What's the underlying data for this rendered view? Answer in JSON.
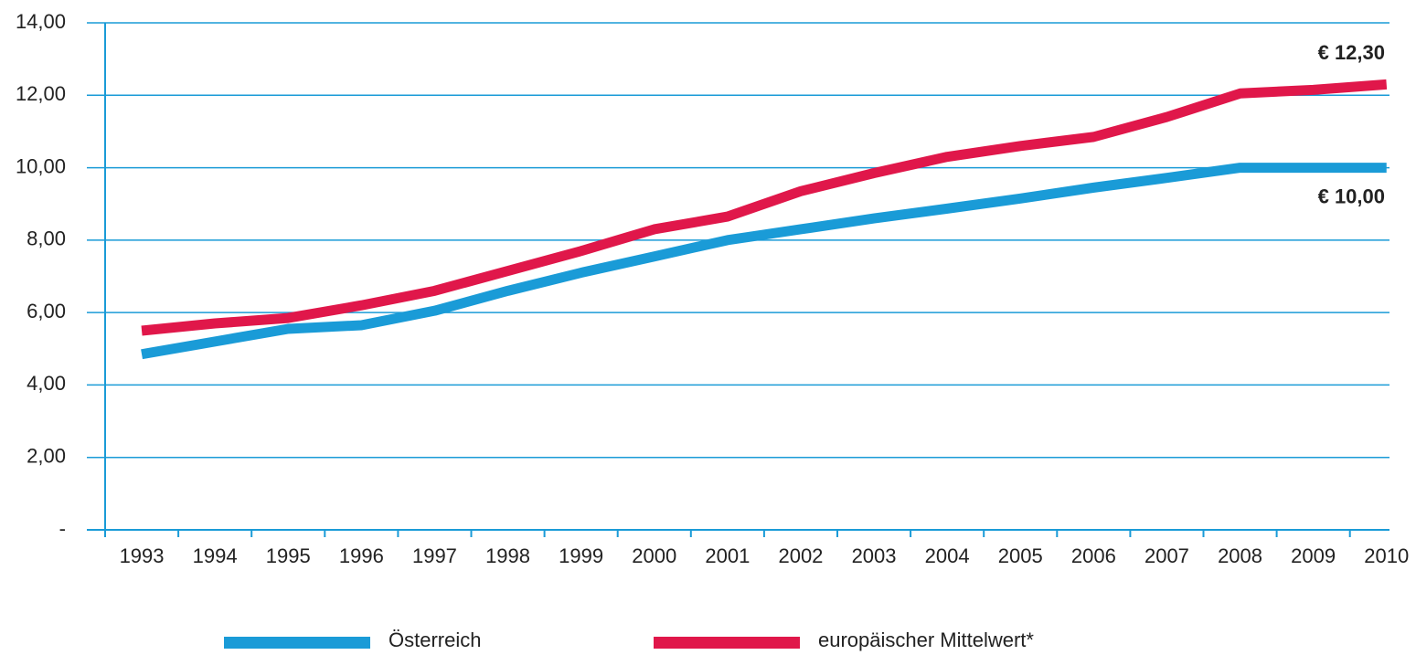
{
  "chart_data": {
    "type": "line",
    "categories": [
      "1993",
      "1994",
      "1995",
      "1996",
      "1997",
      "1998",
      "1999",
      "2000",
      "2001",
      "2002",
      "2003",
      "2004",
      "2005",
      "2006",
      "2007",
      "2008",
      "2009",
      "2010"
    ],
    "series": [
      {
        "name": "Österreich",
        "color": "#1a9bd7",
        "values": [
          4.85,
          5.2,
          5.55,
          5.65,
          6.05,
          6.6,
          7.1,
          7.55,
          8.0,
          8.3,
          8.6,
          8.87,
          9.15,
          9.45,
          9.72,
          10.0,
          10.0,
          10.0
        ]
      },
      {
        "name": "europäischer Mittelwert*",
        "color": "#e0174a",
        "values": [
          5.5,
          5.7,
          5.85,
          6.2,
          6.6,
          7.15,
          7.7,
          8.3,
          8.65,
          9.35,
          9.85,
          10.3,
          10.6,
          10.85,
          11.4,
          12.05,
          12.15,
          12.3
        ]
      }
    ],
    "annotations": [
      "€ 12,30",
      "€ 10,00"
    ],
    "ylim": [
      0,
      14
    ],
    "yticks": [
      {
        "value": 0,
        "label": "-"
      },
      {
        "value": 2,
        "label": "2,00"
      },
      {
        "value": 4,
        "label": "4,00"
      },
      {
        "value": 6,
        "label": "6,00"
      },
      {
        "value": 8,
        "label": "8,00"
      },
      {
        "value": 10,
        "label": "10,00"
      },
      {
        "value": 12,
        "label": "12,00"
      },
      {
        "value": 14,
        "label": "14,00"
      }
    ],
    "grid": true,
    "legend": "bottom"
  }
}
